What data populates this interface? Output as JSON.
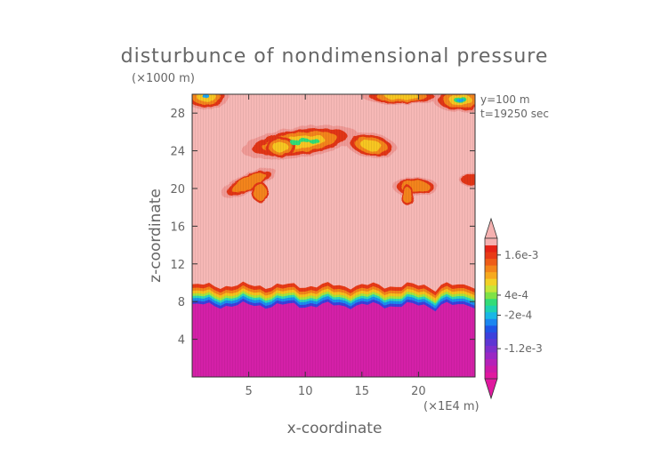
{
  "chart_data": {
    "type": "heatmap",
    "title": "disturbunce of nondimensional pressure",
    "scale_note": "(×1000 m)",
    "xlabel": "x-coordinate",
    "ylabel": "z-coordinate",
    "x_unit_note": "(×1E4 m)",
    "info_lines": [
      "y=100 m",
      "t=19250 sec"
    ],
    "xlim": [
      0,
      25
    ],
    "ylim": [
      0,
      30
    ],
    "x_ticks": [
      5,
      10,
      15,
      20
    ],
    "y_ticks": [
      4,
      8,
      12,
      16,
      20,
      24,
      28
    ],
    "grid": false,
    "legend": "right colorbar",
    "colorbar_labels": [
      {
        "label": "1.6e-3",
        "value": 0.0016
      },
      {
        "label": "4e-4",
        "value": 0.0004
      },
      {
        "label": "-2e-4",
        "value": -0.0002
      },
      {
        "label": "-1.2e-3",
        "value": -0.0012
      }
    ],
    "colorbar_colors": [
      "#e0189f",
      "#cc1aa8",
      "#b521b8",
      "#9a27c4",
      "#7d2fcc",
      "#5e36d3",
      "#3c40dc",
      "#1f55e6",
      "#1b86f0",
      "#19b7e6",
      "#1ed2b0",
      "#33dc77",
      "#7fe246",
      "#c7e639",
      "#f2d126",
      "#f6a91e",
      "#f3841a",
      "#ee5c18",
      "#e83a17",
      "#e52216",
      "#f5b1b0"
    ],
    "fields": {
      "background_color": "#f6b8b6",
      "lower_color": "#d420a8",
      "band_colors": [
        "#e83a17",
        "#f3841a",
        "#f6c21c",
        "#a6e53d",
        "#2ed8b8",
        "#1b8df0",
        "#3c40dc"
      ],
      "blob_colors": {
        "outer": "#f09a96",
        "ring": "#e23418",
        "mid": "#f3841a",
        "inner": "#f7c620",
        "core": "#33dc77",
        "core2": "#1fa6f0"
      }
    }
  }
}
